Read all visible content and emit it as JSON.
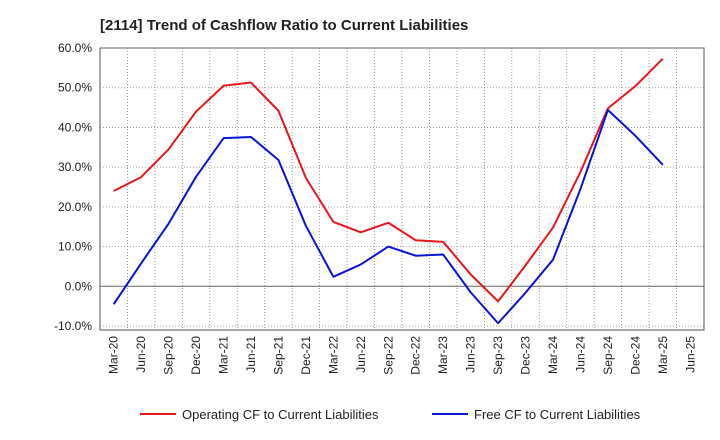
{
  "chart_data": {
    "type": "line",
    "title": "[2114]  Trend of Cashflow Ratio to Current Liabilities",
    "xlabel": "",
    "ylabel": "",
    "x_ticks": [
      "Mar-20",
      "Jun-20",
      "Sep-20",
      "Dec-20",
      "Mar-21",
      "Jun-21",
      "Sep-21",
      "Dec-21",
      "Mar-22",
      "Jun-22",
      "Sep-22",
      "Dec-22",
      "Mar-23",
      "Jun-23",
      "Sep-23",
      "Dec-23",
      "Mar-24",
      "Jun-24",
      "Sep-24",
      "Dec-24",
      "Mar-25",
      "Jun-25"
    ],
    "y_ticks": [
      "60.0%",
      "50.0%",
      "40.0%",
      "30.0%",
      "20.0%",
      "10.0%",
      "0.0%",
      "-10.0%"
    ],
    "y_tick_values": [
      60,
      50,
      40,
      30,
      20,
      10,
      0,
      -10
    ],
    "ylim": [
      -11,
      60
    ],
    "grid": true,
    "legend_position": "bottom",
    "series": [
      {
        "name": "Operating CF to Current Liabilities",
        "color": "#e8161b",
        "values": [
          24.0,
          27.5,
          34.5,
          44.0,
          50.5,
          51.3,
          44.2,
          27.3,
          16.2,
          13.6,
          16.0,
          11.6,
          11.2,
          3.0,
          -3.8,
          5.3,
          14.8,
          28.8,
          44.8,
          50.4,
          57.3,
          null
        ]
      },
      {
        "name": "Free CF to Current Liabilities",
        "color": "#0a14d6",
        "values": [
          -4.5,
          5.8,
          15.8,
          27.6,
          37.3,
          37.6,
          31.8,
          15.2,
          2.4,
          5.5,
          10.0,
          7.7,
          8.0,
          -1.5,
          -9.3,
          -1.6,
          6.7,
          24.5,
          44.4,
          37.9,
          30.6,
          null
        ]
      }
    ]
  }
}
